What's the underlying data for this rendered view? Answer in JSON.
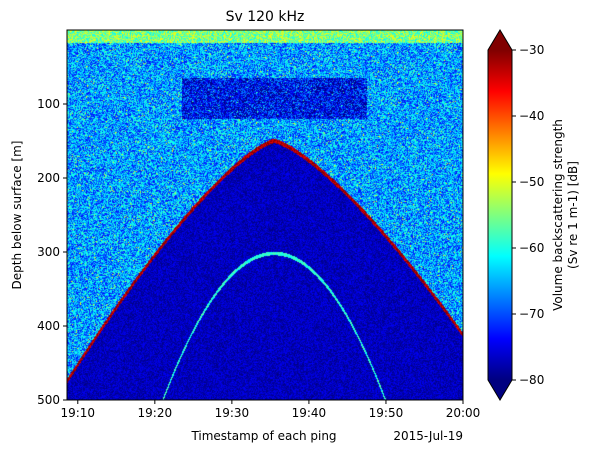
{
  "chart_data": {
    "type": "heatmap",
    "title": "Sv 120 kHz",
    "xlabel": "Timestamp of each ping",
    "x_offset_label": "2015-Jul-19",
    "ylabel": "Depth below surface [m]",
    "x_ticks": [
      "19:10",
      "19:20",
      "19:30",
      "19:40",
      "19:50",
      "20:00"
    ],
    "x_tick_minutes": [
      10,
      20,
      30,
      40,
      50,
      60
    ],
    "xlim_minutes": [
      8.6,
      60.0
    ],
    "y_ticks": [
      100,
      200,
      300,
      400,
      500
    ],
    "ylim": [
      500,
      0
    ],
    "y_inverted": true,
    "colorbar": {
      "label_line1": "Volume backscattering strength",
      "label_line2": "(Sv re 1 m-1) [dB]",
      "ticks": [
        -30,
        -40,
        -50,
        -60,
        -70,
        -80
      ],
      "vmin": -80,
      "vmax": -30,
      "extend": "both",
      "colormap": "jet"
    },
    "features": [
      {
        "name": "seabed echo",
        "peak_time_minutes": 35.5,
        "peak_depth_m": 150,
        "left_edge_depth_m": 475,
        "right_edge_depth_m": 412,
        "sv_db": -30
      },
      {
        "name": "second seabed echo",
        "peak_time_minutes": 35.5,
        "peak_depth_m": 302,
        "sv_db": -60
      },
      {
        "name": "surface layer",
        "depth_range_m": [
          0,
          18
        ],
        "sv_db": -55
      }
    ]
  }
}
